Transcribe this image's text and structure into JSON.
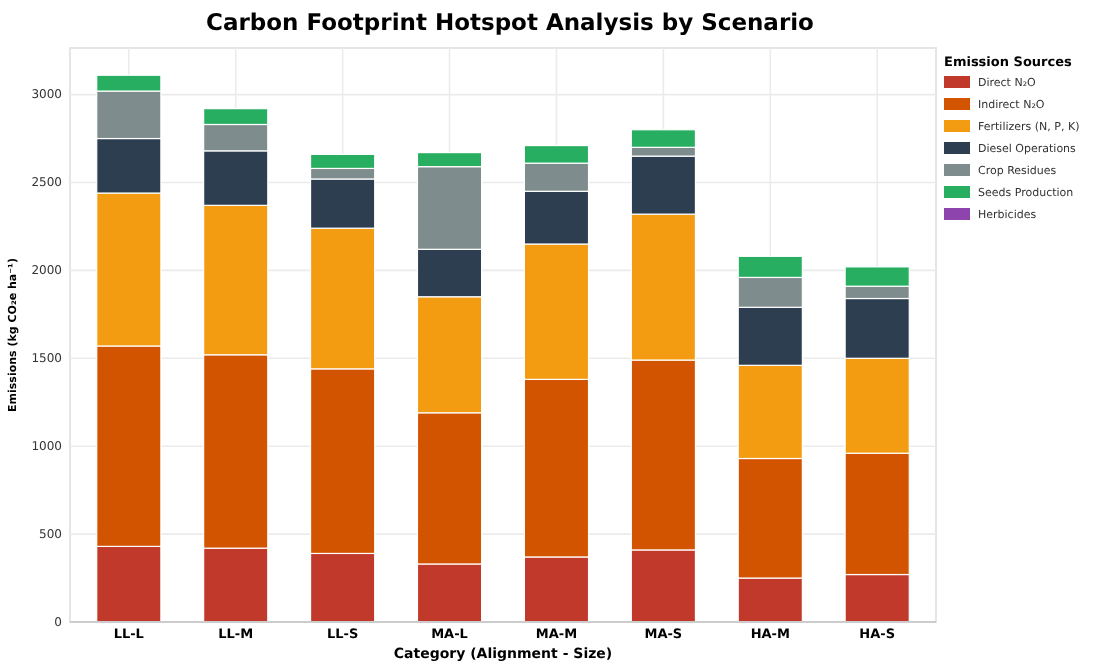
{
  "chart_data": {
    "type": "bar",
    "title": "Carbon Footprint Hotspot Analysis by Scenario",
    "xlabel": "Category (Alignment - Size)",
    "ylabel": "Emissions (kg CO₂e ha⁻¹)",
    "legend_title": "Emission Sources",
    "categories": [
      "LL-L",
      "LL-M",
      "LL-S",
      "MA-L",
      "MA-M",
      "MA-S",
      "HA-M",
      "HA-S"
    ],
    "stacked": true,
    "ylim": [
      0,
      3265
    ],
    "yticks": [
      0,
      500,
      1000,
      1500,
      2000,
      2500,
      3000
    ],
    "grid": true,
    "legend": "top right",
    "series": [
      {
        "name": "Direct N₂O",
        "color": "#c0392b",
        "values": [
          430,
          420,
          390,
          330,
          370,
          410,
          250,
          270
        ]
      },
      {
        "name": "Indirect N₂O",
        "color": "#d35400",
        "values": [
          1140,
          1100,
          1050,
          860,
          1010,
          1080,
          680,
          690
        ]
      },
      {
        "name": "Fertilizers (N, P, K)",
        "color": "#f39c12",
        "values": [
          870,
          850,
          800,
          660,
          770,
          830,
          530,
          540
        ]
      },
      {
        "name": "Diesel Operations",
        "color": "#2c3e50",
        "values": [
          310,
          310,
          280,
          270,
          300,
          330,
          330,
          340
        ]
      },
      {
        "name": "Crop Residues",
        "color": "#7f8c8d",
        "values": [
          270,
          150,
          60,
          470,
          160,
          50,
          170,
          70
        ]
      },
      {
        "name": "Seeds Production",
        "color": "#27ae60",
        "values": [
          90,
          90,
          80,
          80,
          100,
          100,
          120,
          110
        ]
      },
      {
        "name": "Herbicides",
        "color": "#8e44ad",
        "values": [
          0,
          0,
          0,
          0,
          0,
          0,
          0,
          0
        ]
      }
    ]
  }
}
